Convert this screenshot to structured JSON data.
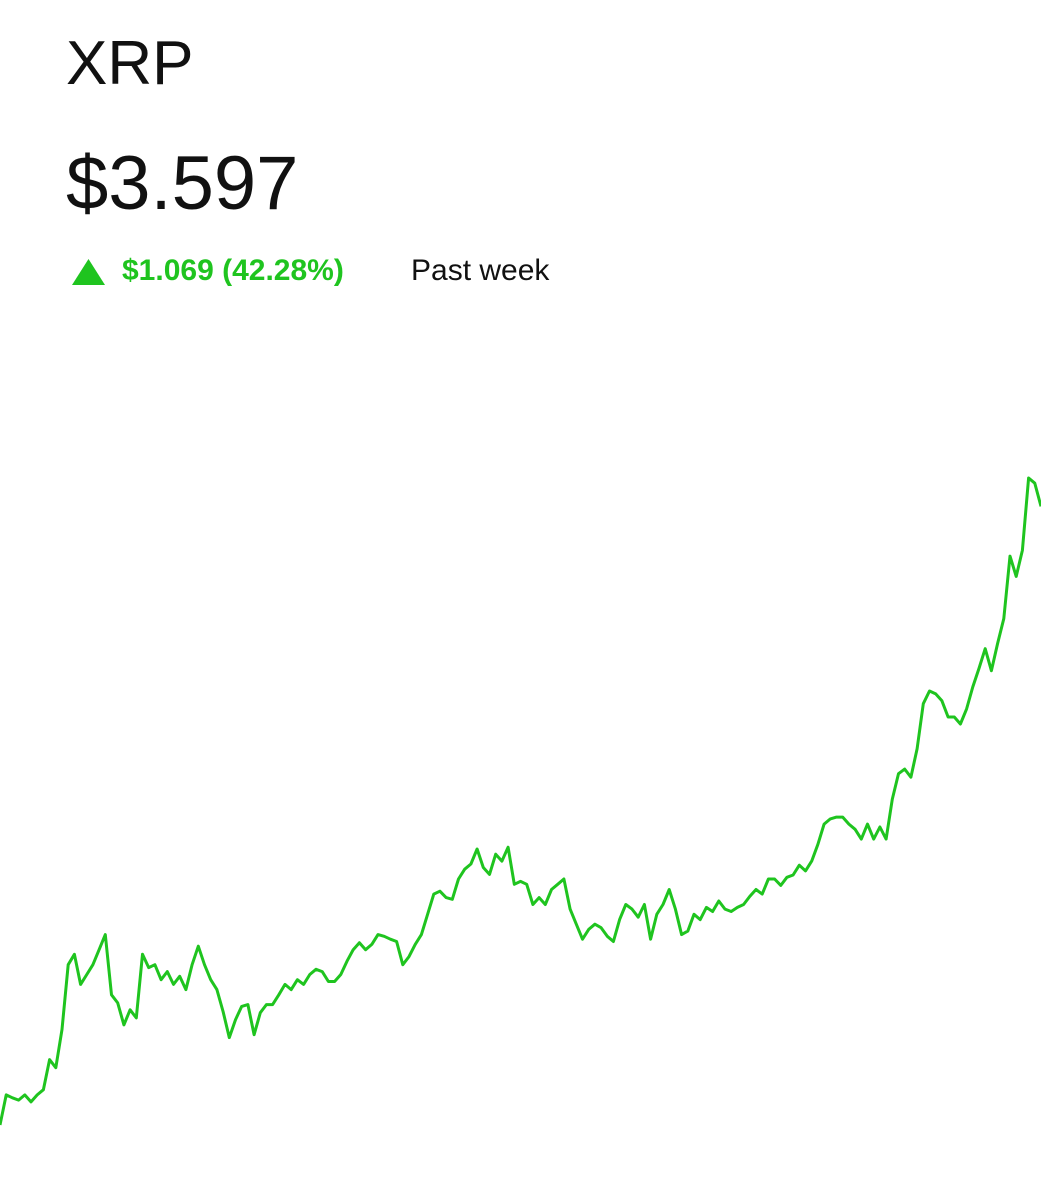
{
  "header": {
    "title": "XRP",
    "price": "$3.597",
    "change": "$1.069 (42.28%)",
    "period": "Past week"
  },
  "chart_data": {
    "type": "line",
    "series": [
      {
        "color": "#1fc41f",
        "values": [
          2.528,
          2.58,
          2.575,
          2.571,
          2.58,
          2.568,
          2.58,
          2.589,
          2.641,
          2.627,
          2.693,
          2.805,
          2.823,
          2.771,
          2.788,
          2.805,
          2.831,
          2.857,
          2.753,
          2.739,
          2.701,
          2.727,
          2.713,
          2.823,
          2.8,
          2.805,
          2.779,
          2.793,
          2.771,
          2.785,
          2.762,
          2.805,
          2.837,
          2.805,
          2.779,
          2.762,
          2.724,
          2.679,
          2.71,
          2.733,
          2.736,
          2.684,
          2.722,
          2.736,
          2.736,
          2.753,
          2.771,
          2.762,
          2.779,
          2.771,
          2.788,
          2.797,
          2.793,
          2.776,
          2.776,
          2.788,
          2.811,
          2.831,
          2.843,
          2.831,
          2.84,
          2.857,
          2.854,
          2.849,
          2.845,
          2.805,
          2.819,
          2.84,
          2.857,
          2.892,
          2.927,
          2.932,
          2.921,
          2.918,
          2.953,
          2.97,
          2.979,
          3.005,
          2.973,
          2.961,
          2.996,
          2.984,
          3.008,
          2.944,
          2.949,
          2.944,
          2.909,
          2.921,
          2.909,
          2.935,
          2.944,
          2.953,
          2.901,
          2.875,
          2.849,
          2.866,
          2.875,
          2.869,
          2.854,
          2.845,
          2.883,
          2.909,
          2.901,
          2.887,
          2.909,
          2.849,
          2.892,
          2.909,
          2.935,
          2.901,
          2.857,
          2.863,
          2.892,
          2.883,
          2.904,
          2.897,
          2.915,
          2.901,
          2.897,
          2.904,
          2.909,
          2.923,
          2.935,
          2.927,
          2.953,
          2.953,
          2.942,
          2.956,
          2.96,
          2.977,
          2.967,
          2.984,
          3.013,
          3.048,
          3.057,
          3.06,
          3.06,
          3.048,
          3.039,
          3.022,
          3.048,
          3.022,
          3.043,
          3.022,
          3.091,
          3.135,
          3.143,
          3.129,
          3.178,
          3.256,
          3.278,
          3.273,
          3.261,
          3.233,
          3.233,
          3.221,
          3.247,
          3.285,
          3.317,
          3.351,
          3.313,
          3.36,
          3.403,
          3.511,
          3.476,
          3.521,
          3.646,
          3.637,
          3.597
        ]
      }
    ]
  }
}
